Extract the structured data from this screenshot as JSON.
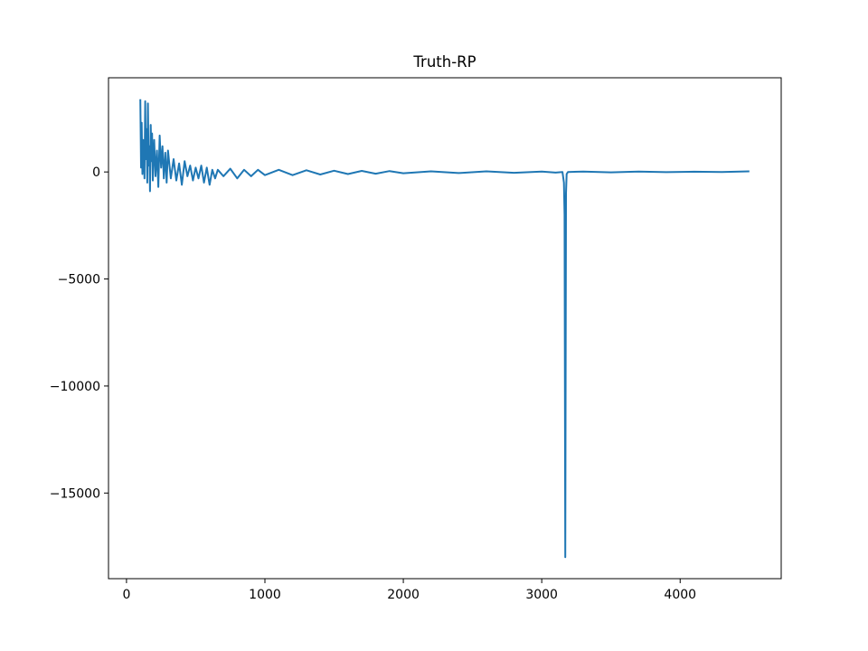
{
  "chart_data": {
    "type": "line",
    "title": "Truth-RP",
    "xlabel": "",
    "ylabel": "",
    "xlim": [
      -130,
      4730
    ],
    "ylim": [
      -19000,
      4400
    ],
    "x_ticks": [
      0,
      1000,
      2000,
      3000,
      4000
    ],
    "y_ticks": [
      0,
      -5000,
      -10000,
      -15000
    ],
    "x_tick_labels": [
      "0",
      "1000",
      "2000",
      "3000",
      "4000"
    ],
    "y_tick_labels": [
      "0",
      "−5000",
      "−10000",
      "−15000"
    ],
    "grid": false,
    "legend": "none",
    "series": [
      {
        "color": "#1f77b4",
        "x": [
          100,
          105,
          110,
          115,
          120,
          125,
          130,
          135,
          140,
          145,
          150,
          155,
          160,
          165,
          170,
          175,
          180,
          185,
          190,
          200,
          210,
          220,
          230,
          240,
          250,
          260,
          270,
          280,
          290,
          300,
          320,
          340,
          360,
          380,
          400,
          420,
          440,
          460,
          480,
          500,
          520,
          540,
          560,
          580,
          600,
          620,
          640,
          660,
          700,
          750,
          800,
          850,
          900,
          950,
          1000,
          1100,
          1200,
          1300,
          1400,
          1500,
          1600,
          1700,
          1800,
          1900,
          2000,
          2200,
          2400,
          2600,
          2800,
          3000,
          3100,
          3150,
          3160,
          3165,
          3170,
          3175,
          3180,
          3190,
          3300,
          3500,
          3700,
          3900,
          4100,
          4300,
          4500
        ],
        "y": [
          3400,
          200,
          2300,
          -100,
          1500,
          800,
          -300,
          3300,
          600,
          2000,
          -500,
          3200,
          300,
          1200,
          -900,
          2200,
          500,
          1800,
          -400,
          1500,
          -200,
          1000,
          -700,
          1700,
          200,
          1200,
          -300,
          900,
          -500,
          1000,
          -300,
          600,
          -400,
          400,
          -600,
          500,
          -200,
          300,
          -400,
          200,
          -300,
          300,
          -500,
          200,
          -600,
          100,
          -300,
          100,
          -200,
          150,
          -300,
          100,
          -200,
          100,
          -150,
          100,
          -150,
          80,
          -120,
          60,
          -100,
          50,
          -80,
          40,
          -60,
          30,
          -50,
          30,
          -40,
          20,
          -30,
          0,
          -500,
          -2000,
          -18000,
          -1000,
          -100,
          0,
          20,
          -20,
          20,
          -10,
          10,
          -5,
          30
        ]
      }
    ]
  }
}
